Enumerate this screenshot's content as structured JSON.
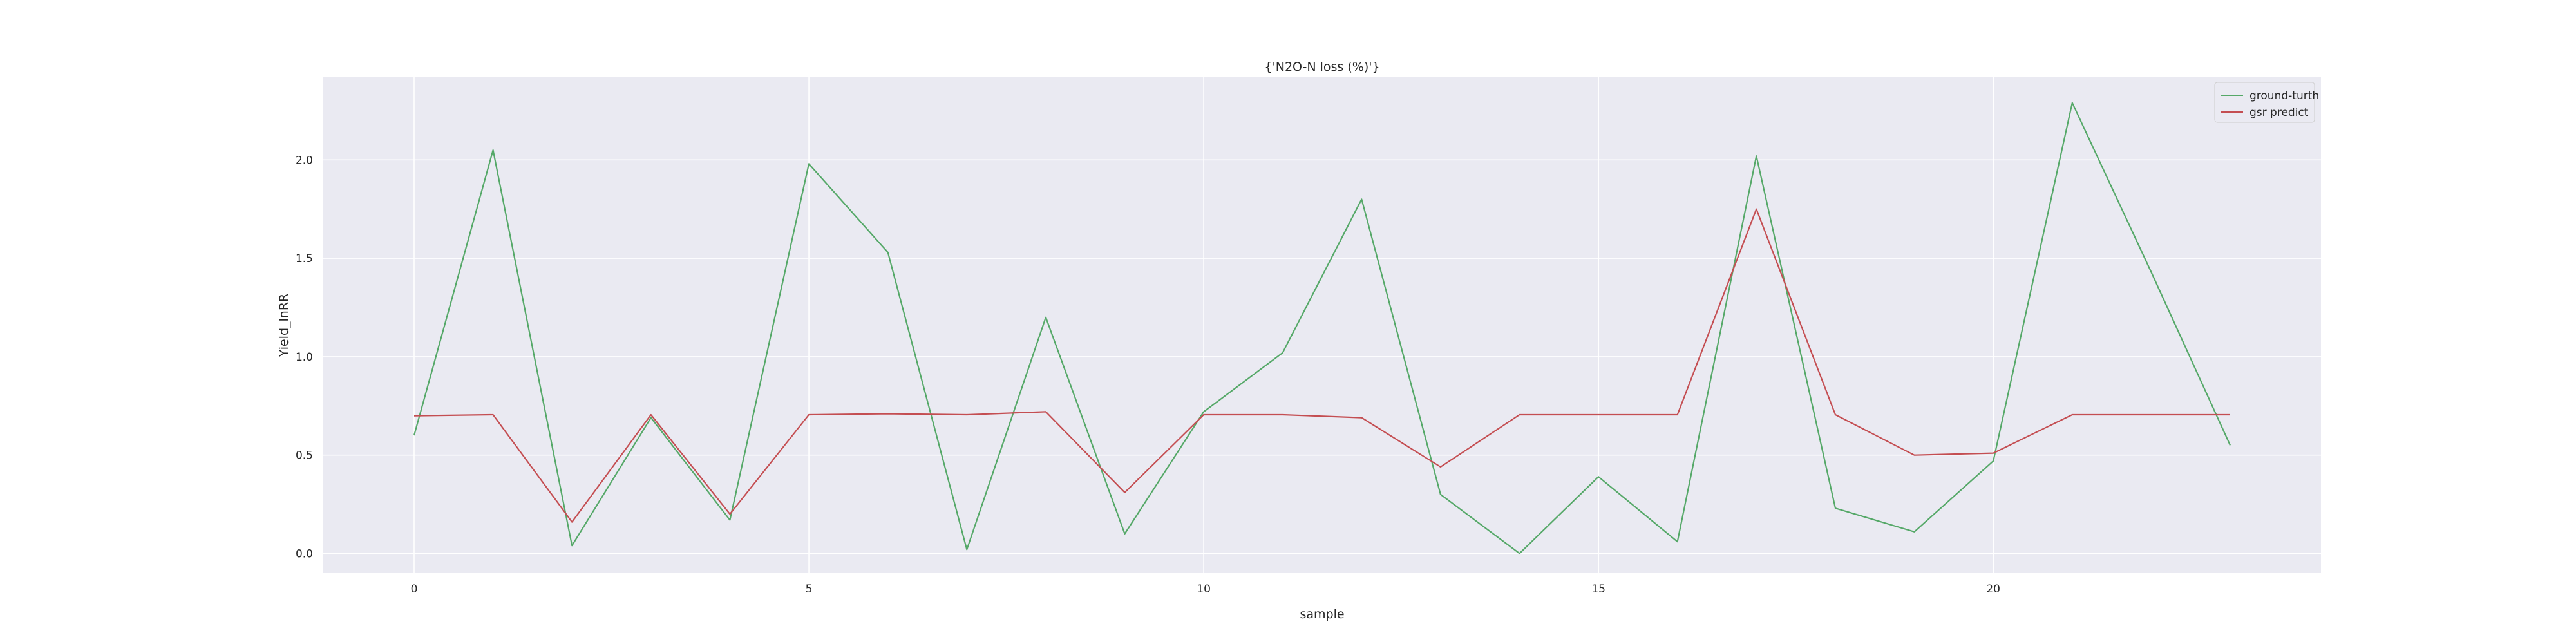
{
  "chart_data": {
    "type": "line",
    "title": "{'N2O-N loss (%)'}",
    "xlabel": "sample",
    "ylabel": "Yield_lnRR",
    "xlim": [
      -1.15,
      24.15
    ],
    "ylim": [
      -0.1,
      2.42
    ],
    "x_ticks": [
      0,
      5,
      10,
      15,
      20
    ],
    "y_ticks": [
      0.0,
      0.5,
      1.0,
      1.5,
      2.0
    ],
    "y_tick_labels": [
      "0.0",
      "0.5",
      "1.0",
      "1.5",
      "2.0"
    ],
    "grid": true,
    "background": "#eaeaf2",
    "legend_position": "top-right",
    "x": [
      0,
      1,
      2,
      3,
      4,
      5,
      6,
      7,
      8,
      9,
      10,
      11,
      12,
      13,
      14,
      15,
      16,
      17,
      18,
      19,
      20,
      21,
      22,
      23
    ],
    "series": [
      {
        "name": "ground-turth",
        "color": "#55a868",
        "values": [
          0.6,
          2.05,
          0.04,
          0.69,
          0.17,
          1.98,
          1.53,
          0.02,
          1.2,
          0.1,
          0.72,
          1.02,
          1.8,
          0.3,
          0.0,
          0.39,
          0.06,
          2.02,
          0.23,
          0.11,
          0.47,
          2.29,
          1.43,
          0.55
        ]
      },
      {
        "name": "gsr predict",
        "color": "#c44e52",
        "values": [
          0.7,
          0.705,
          0.16,
          0.705,
          0.2,
          0.705,
          0.71,
          0.705,
          0.72,
          0.31,
          0.705,
          0.705,
          0.69,
          0.44,
          0.705,
          0.705,
          0.705,
          1.75,
          0.705,
          0.5,
          0.51,
          0.705,
          0.705,
          0.705
        ]
      }
    ]
  }
}
